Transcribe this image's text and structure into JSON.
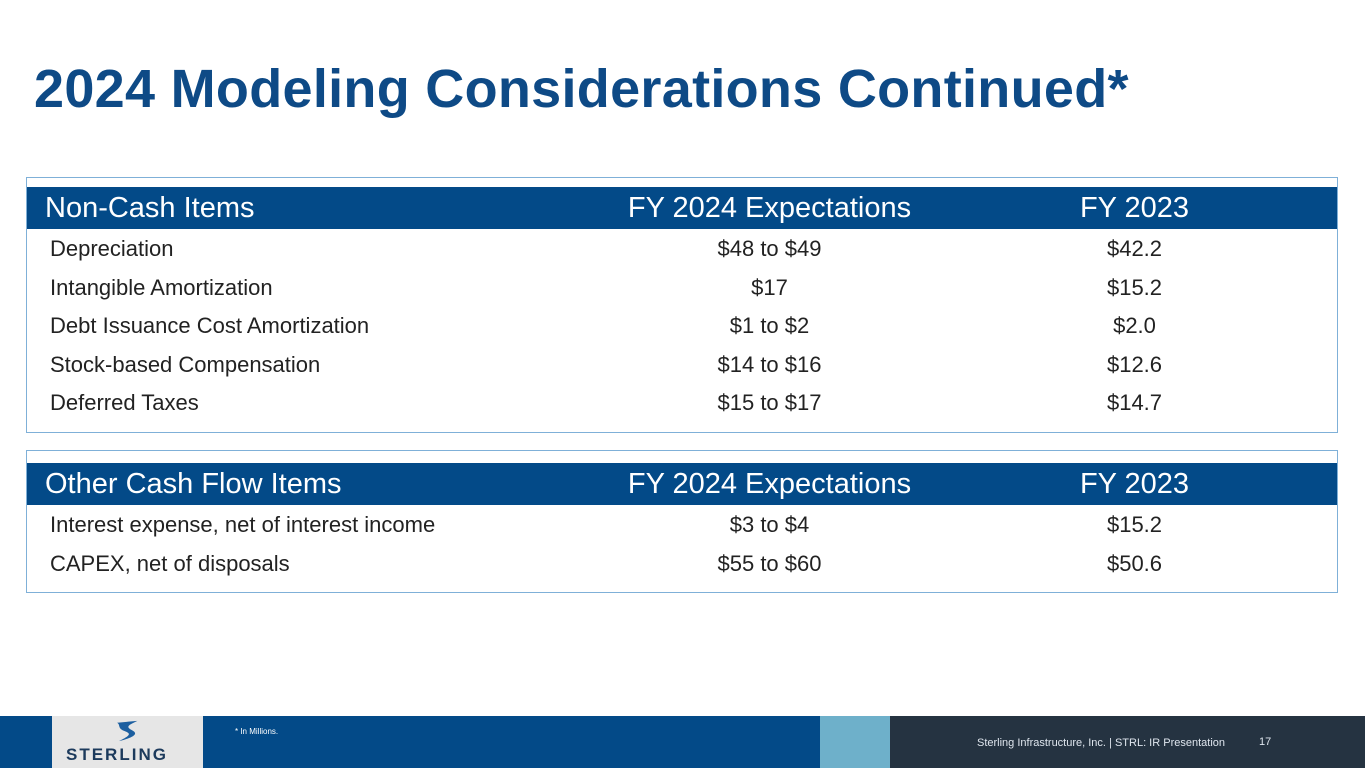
{
  "title": "2024 Modeling Considerations Continued*",
  "tables": [
    {
      "headers": [
        "Non-Cash Items",
        "FY 2024 Expectations",
        "FY 2023"
      ],
      "rows": [
        [
          "Depreciation",
          "$48 to $49",
          "$42.2"
        ],
        [
          "Intangible Amortization",
          "$17",
          "$15.2"
        ],
        [
          "Debt Issuance Cost Amortization",
          "$1 to $2",
          "$2.0"
        ],
        [
          "Stock-based Compensation",
          "$14 to $16",
          "$12.6"
        ],
        [
          "Deferred Taxes",
          "$15 to $17",
          "$14.7"
        ]
      ]
    },
    {
      "headers": [
        "Other Cash Flow Items",
        "FY 2024 Expectations",
        "FY 2023"
      ],
      "rows": [
        [
          "Interest expense, net of interest income",
          "$3 to $4",
          "$15.2"
        ],
        [
          "CAPEX, net of disposals",
          "$55 to $60",
          "$50.6"
        ]
      ]
    }
  ],
  "footer": {
    "logo_text": "STERLING",
    "note": "* In Millions.",
    "text": "Sterling Infrastructure, Inc. | STRL:  IR Presentation",
    "page": "17"
  },
  "colors": {
    "brand": "#034a88",
    "accent": "#6eb0ca",
    "dark": "#253341"
  }
}
